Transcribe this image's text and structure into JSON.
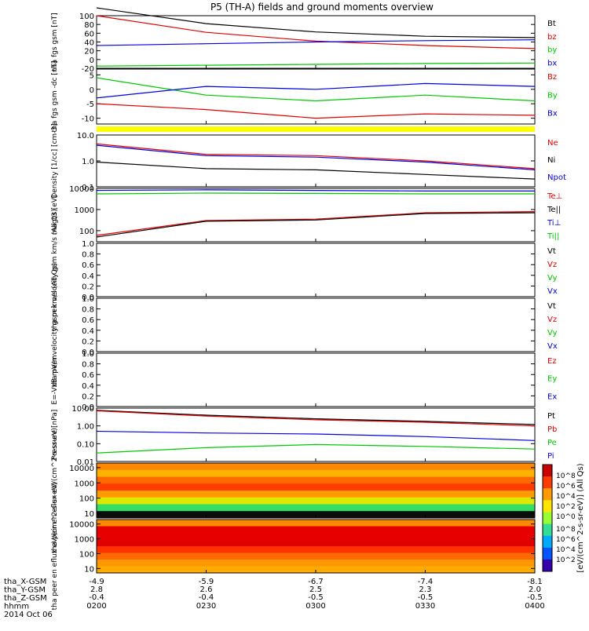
{
  "title": "P5 (TH-A) fields and ground moments overview",
  "colors": {
    "black": "#000000",
    "red": "#e00000",
    "green": "#00c800",
    "blue": "#0000e0",
    "yellow": "#ffff00"
  },
  "x_axis": {
    "hhmm": [
      "0200",
      "0230",
      "0300",
      "0330",
      "0400"
    ],
    "row_labels": [
      "tha_X-GSM",
      "tha_Y-GSM",
      "tha_Z-GSM",
      "hhmm",
      "2014 Oct 06"
    ],
    "x_gsm": [
      "-4.9",
      "-5.9",
      "-6.7",
      "-7.4",
      "-8.1"
    ],
    "y_gsm": [
      "2.8",
      "2.6",
      "2.5",
      "2.3",
      "2.0"
    ],
    "z_gsm": [
      "-0.4",
      "-0.4",
      "-0.5",
      "-0.5",
      "-0.5"
    ]
  },
  "spec_colorbar": {
    "label": "[eV/(cm^2-s-sr-eV)] (All Qs)",
    "ticks_top": [
      "10^8",
      "10^6",
      "10^4",
      "10^2",
      "10^0"
    ],
    "ticks_bottom": [
      "10^8",
      "10^6",
      "10^4",
      "10^2"
    ]
  },
  "chart_data": [
    {
      "id": "fgs_gsm",
      "type": "line",
      "ylabel": "tha fgs gsm [nT]",
      "ylim": [
        -20,
        100
      ],
      "yticks": [
        "100",
        "80",
        "60",
        "40",
        "20",
        "0",
        "-20"
      ],
      "series": [
        {
          "name": "Bt",
          "color": "black",
          "x": [
            "0200",
            "0230",
            "0300",
            "0330",
            "0400"
          ],
          "values": [
            118,
            82,
            63,
            53,
            50
          ]
        },
        {
          "name": "bz",
          "color": "red",
          "x": [
            "0200",
            "0230",
            "0300",
            "0330",
            "0400"
          ],
          "values": [
            100,
            62,
            42,
            32,
            25
          ]
        },
        {
          "name": "by",
          "color": "green",
          "x": [
            "0200",
            "0230",
            "0300",
            "0330",
            "0400"
          ],
          "values": [
            -15,
            -13,
            -11,
            -9,
            -8
          ]
        },
        {
          "name": "bx",
          "color": "blue",
          "x": [
            "0200",
            "0230",
            "0300",
            "0330",
            "0400"
          ],
          "values": [
            32,
            36,
            40,
            43,
            45
          ]
        }
      ]
    },
    {
      "id": "fgs_gsm_dc",
      "type": "line",
      "ylabel": "tha fgs gsm -dc [nT]",
      "ylim": [
        -12,
        7
      ],
      "yticks": [
        "5",
        "0",
        "-5",
        "-10"
      ],
      "series": [
        {
          "name": "Bz",
          "color": "red",
          "x": [
            "0200",
            "0230",
            "0300",
            "0330",
            "0400"
          ],
          "values": [
            -5,
            -7,
            -10,
            -8.5,
            -9
          ]
        },
        {
          "name": "By",
          "color": "green",
          "x": [
            "0200",
            "0230",
            "0300",
            "0330",
            "0400"
          ],
          "values": [
            4,
            -2,
            -4,
            -2,
            -4
          ]
        },
        {
          "name": "Bx",
          "color": "blue",
          "x": [
            "0200",
            "0230",
            "0300",
            "0330",
            "0400"
          ],
          "values": [
            -3,
            1,
            0,
            2,
            1
          ]
        }
      ]
    },
    {
      "id": "density",
      "type": "line",
      "ylabel": "Density [1/cc] [cm-3]",
      "scale": "log",
      "ylim": [
        0.1,
        10
      ],
      "yticks": [
        "10.0",
        "1.0",
        "0.1"
      ],
      "series": [
        {
          "name": "Ne",
          "color": "red",
          "x": [
            "0200",
            "0230",
            "0300",
            "0330",
            "0400"
          ],
          "values": [
            4.5,
            1.8,
            1.6,
            1.0,
            0.5
          ]
        },
        {
          "name": "Ni",
          "color": "black",
          "x": [
            "0200",
            "0230",
            "0300",
            "0330",
            "0400"
          ],
          "values": [
            0.9,
            0.5,
            0.45,
            0.3,
            0.2
          ]
        },
        {
          "name": "Npot",
          "color": "blue",
          "x": [
            "0200",
            "0230",
            "0300",
            "0330",
            "0400"
          ],
          "values": [
            4.0,
            1.6,
            1.4,
            0.9,
            0.45
          ]
        }
      ]
    },
    {
      "id": "temperature",
      "type": "line",
      "ylabel": "magt3 [eV]",
      "scale": "log",
      "ylim": [
        30,
        10000
      ],
      "yticks": [
        "10000",
        "1000",
        "100"
      ],
      "series": [
        {
          "name": "Te⊥",
          "color": "red",
          "x": [
            "0200",
            "0230",
            "0300",
            "0330",
            "0400"
          ],
          "values": [
            60,
            300,
            350,
            700,
            800
          ]
        },
        {
          "name": "Te||",
          "color": "black",
          "x": [
            "0200",
            "0230",
            "0300",
            "0330",
            "0400"
          ],
          "values": [
            50,
            280,
            320,
            650,
            700
          ]
        },
        {
          "name": "Ti⊥",
          "color": "blue",
          "x": [
            "0200",
            "0230",
            "0300",
            "0330",
            "0400"
          ],
          "values": [
            8000,
            8500,
            8000,
            7500,
            7500
          ]
        },
        {
          "name": "Ti||",
          "color": "green",
          "x": [
            "0200",
            "0230",
            "0300",
            "0330",
            "0400"
          ],
          "values": [
            5500,
            6000,
            5800,
            5500,
            5500
          ]
        }
      ]
    },
    {
      "id": "peir_velocity",
      "type": "line",
      "ylabel": "tha peir velocity gsm km/s (All Qs)",
      "ylim": [
        0,
        1
      ],
      "yticks": [
        "1.0",
        "0.8",
        "0.6",
        "0.4",
        "0.2",
        "0.0"
      ],
      "series": [
        {
          "name": "Vt",
          "color": "black",
          "x": [],
          "values": []
        },
        {
          "name": "Vz",
          "color": "red",
          "x": [],
          "values": []
        },
        {
          "name": "Vy",
          "color": "green",
          "x": [],
          "values": []
        },
        {
          "name": "Vx",
          "color": "blue",
          "x": [],
          "values": []
        }
      ]
    },
    {
      "id": "peer_velocity",
      "type": "line",
      "ylabel": "tha peer velocity gsm km/s (All Qs)",
      "ylim": [
        0,
        1
      ],
      "yticks": [
        "1.0",
        "0.8",
        "0.6",
        "0.4",
        "0.2",
        "0.0"
      ],
      "series": [
        {
          "name": "Vt",
          "color": "black",
          "x": [],
          "values": []
        },
        {
          "name": "Vz",
          "color": "red",
          "x": [],
          "values": []
        },
        {
          "name": "Vy",
          "color": "green",
          "x": [],
          "values": []
        },
        {
          "name": "Vx",
          "color": "blue",
          "x": [],
          "values": []
        }
      ]
    },
    {
      "id": "efield",
      "type": "line",
      "ylabel": "E=-VxB mV/m",
      "ylim": [
        0,
        1
      ],
      "yticks": [
        "1.0",
        "0.8",
        "0.6",
        "0.4",
        "0.2",
        "0.0"
      ],
      "series": [
        {
          "name": "Ez",
          "color": "red",
          "x": [],
          "values": []
        },
        {
          "name": "Ey",
          "color": "green",
          "x": [],
          "values": []
        },
        {
          "name": "Ex",
          "color": "blue",
          "x": [],
          "values": []
        }
      ]
    },
    {
      "id": "pressure",
      "type": "line",
      "ylabel": "Pressure [nPa]",
      "scale": "log",
      "ylim": [
        0.01,
        10
      ],
      "yticks": [
        "10.00",
        "1.00",
        "0.10",
        "0.01"
      ],
      "series": [
        {
          "name": "Pt",
          "color": "black",
          "x": [
            "0200",
            "0230",
            "0300",
            "0330",
            "0400"
          ],
          "values": [
            7.5,
            4.0,
            2.5,
            1.8,
            1.2
          ]
        },
        {
          "name": "Pb",
          "color": "red",
          "x": [
            "0200",
            "0230",
            "0300",
            "0330",
            "0400"
          ],
          "values": [
            7.0,
            3.6,
            2.2,
            1.6,
            1.0
          ]
        },
        {
          "name": "Pe",
          "color": "green",
          "x": [
            "0200",
            "0230",
            "0300",
            "0330",
            "0400"
          ],
          "values": [
            0.03,
            0.06,
            0.09,
            0.07,
            0.05
          ]
        },
        {
          "name": "Pi",
          "color": "blue",
          "x": [
            "0200",
            "0230",
            "0300",
            "0330",
            "0400"
          ],
          "values": [
            0.5,
            0.4,
            0.35,
            0.25,
            0.15
          ]
        }
      ]
    },
    {
      "id": "peir_spectrogram",
      "type": "heatmap",
      "ylabel": "tha peir en eflux eV/(cm^2-s-sr-eV)",
      "scale": "log",
      "ylim": [
        5,
        20000
      ],
      "yticks": [
        "10000",
        "1000",
        "100",
        "10"
      ]
    },
    {
      "id": "peer_spectrogram",
      "type": "heatmap",
      "ylabel": "tha peer en eflux eV/(cm^2-s-sr-eV)",
      "scale": "log",
      "ylim": [
        5,
        20000
      ],
      "yticks": [
        "10000",
        "1000",
        "100",
        "10"
      ]
    }
  ]
}
